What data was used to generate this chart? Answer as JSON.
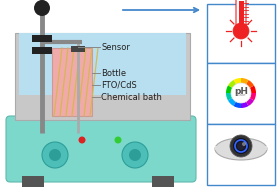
{
  "bg_color": "#ffffff",
  "hotplate_color": "#7dd8cc",
  "hotplate_ec": "#60b8ac",
  "bath_outer_color": "#c8c8c8",
  "bath_outer_ec": "#aaaaaa",
  "bath_liquid_color": "#b8dff0",
  "bottle_color": "#f0aaaa",
  "bottle_ec": "#cc9999",
  "fto_line_color": "#d4b84a",
  "stand_color": "#888888",
  "stand_dark": "#444444",
  "clamp_color": "#222222",
  "sensor_rod_color": "#aaaaaa",
  "sensor_clamp_color": "#444444",
  "knob_color": "#4dbfb8",
  "knob_ec": "#2d9f98",
  "knob_inner": "#2d9f98",
  "feet_color": "#555555",
  "red_dot": "#dd2222",
  "green_dot": "#33cc33",
  "label_color": "#222222",
  "label_line_color": "#888888",
  "label_sensor": "Sensor",
  "label_bottle": "Bottle",
  "label_fto": "FTO/CdS",
  "label_bath": "Chemical bath",
  "arrow_color": "#4488cc",
  "icon_ec": "#4488cc",
  "icon_bg": "#ffffff",
  "thermo_red": "#ee2222",
  "ph_text_color": "#555555",
  "ph_colors": [
    "#ff0000",
    "#ff5500",
    "#ffaa00",
    "#ffee00",
    "#aaee00",
    "#00cc00",
    "#00ccaa",
    "#00aaff",
    "#0055ff",
    "#8800ff",
    "#cc00cc",
    "#ff0077"
  ],
  "cam_body": "#dddddd",
  "cam_body_ec": "#aaaaaa",
  "cam_lens_outer": "#444444",
  "cam_lens_inner": "#111122",
  "cam_iris": "#3366ff"
}
